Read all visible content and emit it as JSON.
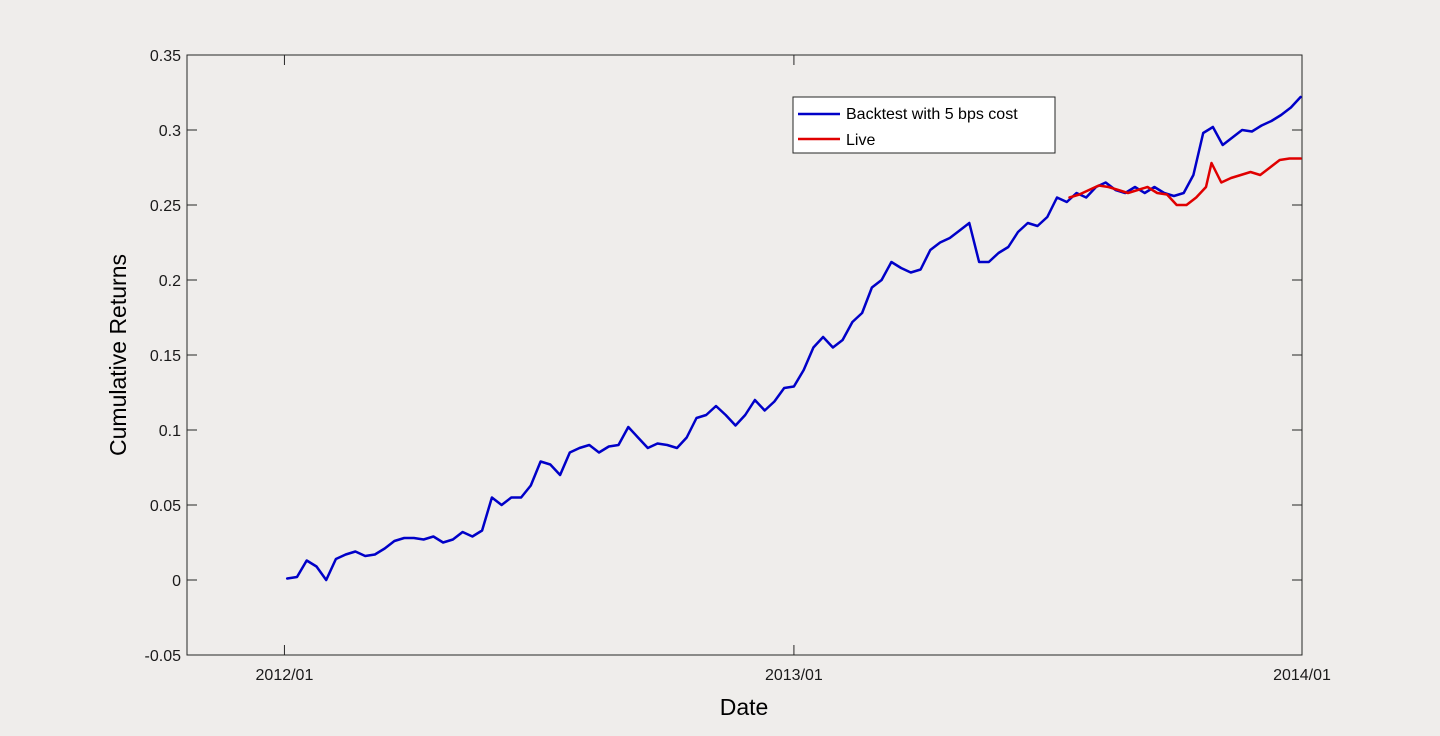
{
  "chart_data": {
    "type": "line",
    "title": "",
    "xlabel": "Date",
    "ylabel": "Cumulative Returns",
    "xlim": [
      "2011/10/23",
      "2014/01/01"
    ],
    "ylim": [
      -0.05,
      0.35
    ],
    "x_ticks": [
      "2012/01",
      "2013/01",
      "2014/01"
    ],
    "y_ticks": [
      "-0.05",
      "0",
      "0.05",
      "0.1",
      "0.15",
      "0.2",
      "0.25",
      "0.3",
      "0.35"
    ],
    "grid": false,
    "legend_position": "top-right",
    "series": [
      {
        "name": "Backtest with 5 bps cost",
        "color": "#0000c8",
        "points": [
          [
            "2012/01/03",
            0.001
          ],
          [
            "2012/01/10",
            0.002
          ],
          [
            "2012/01/17",
            0.013
          ],
          [
            "2012/01/24",
            0.009
          ],
          [
            "2012/01/31",
            0.0
          ],
          [
            "2012/02/07",
            0.014
          ],
          [
            "2012/02/14",
            0.017
          ],
          [
            "2012/02/21",
            0.019
          ],
          [
            "2012/02/28",
            0.016
          ],
          [
            "2012/03/06",
            0.017
          ],
          [
            "2012/03/13",
            0.021
          ],
          [
            "2012/03/20",
            0.026
          ],
          [
            "2012/03/27",
            0.028
          ],
          [
            "2012/04/03",
            0.028
          ],
          [
            "2012/04/10",
            0.027
          ],
          [
            "2012/04/17",
            0.029
          ],
          [
            "2012/04/24",
            0.025
          ],
          [
            "2012/05/01",
            0.027
          ],
          [
            "2012/05/08",
            0.032
          ],
          [
            "2012/05/15",
            0.029
          ],
          [
            "2012/05/22",
            0.033
          ],
          [
            "2012/05/29",
            0.055
          ],
          [
            "2012/06/05",
            0.05
          ],
          [
            "2012/06/12",
            0.055
          ],
          [
            "2012/06/19",
            0.055
          ],
          [
            "2012/06/26",
            0.063
          ],
          [
            "2012/07/03",
            0.079
          ],
          [
            "2012/07/10",
            0.077
          ],
          [
            "2012/07/17",
            0.07
          ],
          [
            "2012/07/24",
            0.085
          ],
          [
            "2012/07/31",
            0.088
          ],
          [
            "2012/08/07",
            0.09
          ],
          [
            "2012/08/14",
            0.085
          ],
          [
            "2012/08/21",
            0.089
          ],
          [
            "2012/08/28",
            0.09
          ],
          [
            "2012/09/04",
            0.102
          ],
          [
            "2012/09/11",
            0.095
          ],
          [
            "2012/09/18",
            0.088
          ],
          [
            "2012/09/25",
            0.091
          ],
          [
            "2012/10/02",
            0.09
          ],
          [
            "2012/10/09",
            0.088
          ],
          [
            "2012/10/16",
            0.095
          ],
          [
            "2012/10/23",
            0.108
          ],
          [
            "2012/10/30",
            0.11
          ],
          [
            "2012/11/06",
            0.116
          ],
          [
            "2012/11/13",
            0.11
          ],
          [
            "2012/11/20",
            0.103
          ],
          [
            "2012/11/27",
            0.11
          ],
          [
            "2012/12/04",
            0.12
          ],
          [
            "2012/12/11",
            0.113
          ],
          [
            "2012/12/18",
            0.119
          ],
          [
            "2012/12/25",
            0.128
          ],
          [
            "2013/01/01",
            0.129
          ],
          [
            "2013/01/08",
            0.14
          ],
          [
            "2013/01/15",
            0.155
          ],
          [
            "2013/01/22",
            0.162
          ],
          [
            "2013/01/29",
            0.155
          ],
          [
            "2013/02/05",
            0.16
          ],
          [
            "2013/02/12",
            0.172
          ],
          [
            "2013/02/19",
            0.178
          ],
          [
            "2013/02/26",
            0.195
          ],
          [
            "2013/03/05",
            0.2
          ],
          [
            "2013/03/12",
            0.212
          ],
          [
            "2013/03/19",
            0.208
          ],
          [
            "2013/03/26",
            0.205
          ],
          [
            "2013/04/02",
            0.207
          ],
          [
            "2013/04/09",
            0.22
          ],
          [
            "2013/04/16",
            0.225
          ],
          [
            "2013/04/23",
            0.228
          ],
          [
            "2013/04/30",
            0.233
          ],
          [
            "2013/05/07",
            0.238
          ],
          [
            "2013/05/14",
            0.212
          ],
          [
            "2013/05/21",
            0.212
          ],
          [
            "2013/05/28",
            0.218
          ],
          [
            "2013/06/04",
            0.222
          ],
          [
            "2013/06/11",
            0.232
          ],
          [
            "2013/06/18",
            0.238
          ],
          [
            "2013/06/25",
            0.236
          ],
          [
            "2013/07/02",
            0.242
          ],
          [
            "2013/07/09",
            0.255
          ],
          [
            "2013/07/16",
            0.252
          ],
          [
            "2013/07/23",
            0.258
          ],
          [
            "2013/07/30",
            0.255
          ],
          [
            "2013/08/06",
            0.262
          ],
          [
            "2013/08/13",
            0.265
          ],
          [
            "2013/08/20",
            0.26
          ],
          [
            "2013/08/27",
            0.258
          ],
          [
            "2013/09/03",
            0.262
          ],
          [
            "2013/09/10",
            0.258
          ],
          [
            "2013/09/17",
            0.262
          ],
          [
            "2013/09/24",
            0.258
          ],
          [
            "2013/10/01",
            0.256
          ],
          [
            "2013/10/08",
            0.258
          ],
          [
            "2013/10/15",
            0.27
          ],
          [
            "2013/10/22",
            0.298
          ],
          [
            "2013/10/29",
            0.302
          ],
          [
            "2013/11/05",
            0.29
          ],
          [
            "2013/11/12",
            0.295
          ],
          [
            "2013/11/19",
            0.3
          ],
          [
            "2013/11/26",
            0.299
          ],
          [
            "2013/12/03",
            0.303
          ],
          [
            "2013/12/10",
            0.306
          ],
          [
            "2013/12/17",
            0.31
          ],
          [
            "2013/12/24",
            0.315
          ],
          [
            "2013/12/31",
            0.322
          ]
        ]
      },
      {
        "name": "Live",
        "color": "#e00000",
        "points": [
          [
            "2013/07/18",
            0.255
          ],
          [
            "2013/07/25",
            0.257
          ],
          [
            "2013/08/01",
            0.26
          ],
          [
            "2013/08/08",
            0.263
          ],
          [
            "2013/08/15",
            0.262
          ],
          [
            "2013/08/22",
            0.26
          ],
          [
            "2013/08/29",
            0.258
          ],
          [
            "2013/09/05",
            0.26
          ],
          [
            "2013/09/12",
            0.262
          ],
          [
            "2013/09/19",
            0.258
          ],
          [
            "2013/09/26",
            0.257
          ],
          [
            "2013/10/03",
            0.25
          ],
          [
            "2013/10/10",
            0.25
          ],
          [
            "2013/10/17",
            0.255
          ],
          [
            "2013/10/24",
            0.262
          ],
          [
            "2013/10/28",
            0.278
          ],
          [
            "2013/11/04",
            0.265
          ],
          [
            "2013/11/11",
            0.268
          ],
          [
            "2013/11/18",
            0.27
          ],
          [
            "2013/11/25",
            0.272
          ],
          [
            "2013/12/02",
            0.27
          ],
          [
            "2013/12/09",
            0.275
          ],
          [
            "2013/12/16",
            0.28
          ],
          [
            "2013/12/23",
            0.281
          ],
          [
            "2013/12/31",
            0.281
          ]
        ]
      }
    ]
  }
}
